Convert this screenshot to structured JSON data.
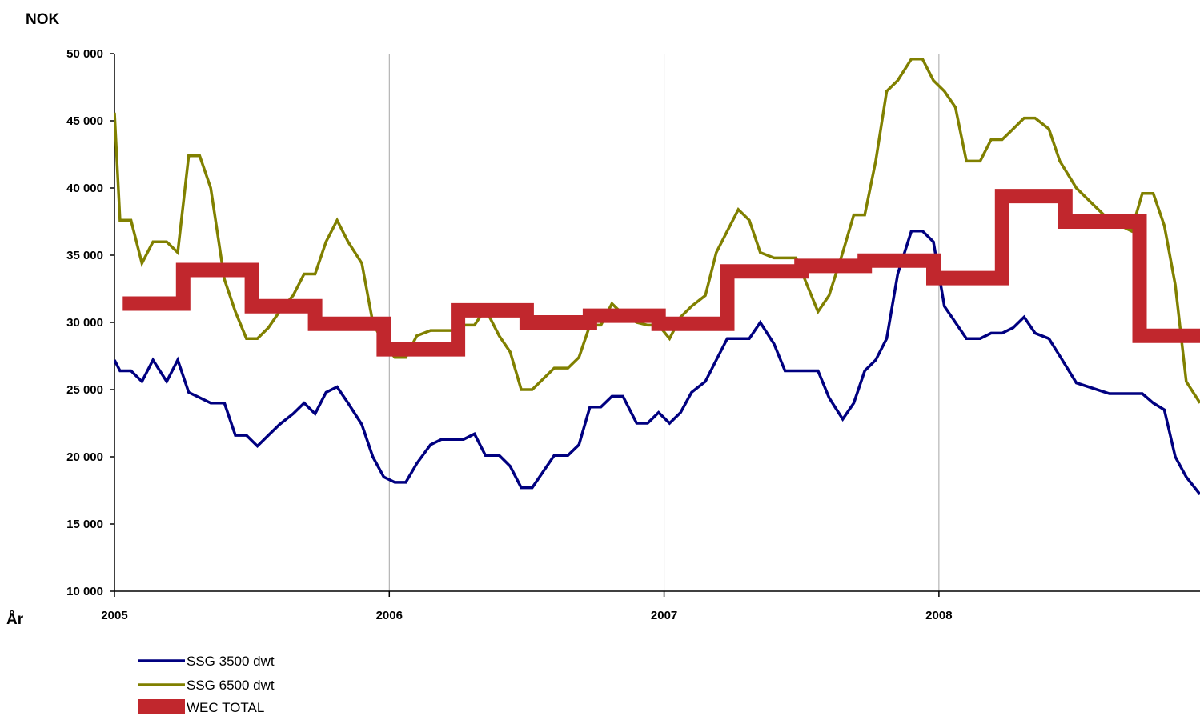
{
  "chart_data": {
    "type": "line",
    "ylabel": "NOK",
    "xlabel": "År",
    "xlim": [
      2005,
      2008.95
    ],
    "ylim": [
      10000,
      50000
    ],
    "y_ticks": [
      10000,
      15000,
      20000,
      25000,
      30000,
      35000,
      40000,
      45000,
      50000
    ],
    "y_tick_labels": [
      "10 000",
      "15 000",
      "20 000",
      "25 000",
      "30 000",
      "35 000",
      "40 000",
      "45 000",
      "50 000"
    ],
    "x_ticks": [
      2005,
      2006,
      2007,
      2008
    ],
    "x_tick_labels": [
      "2005",
      "2006",
      "2007",
      "2008"
    ],
    "grid": "vertical lines at year ticks",
    "legend_position": "bottom-left",
    "series": [
      {
        "name": "SSG 3500 dwt",
        "color": "#000080",
        "style": "line",
        "x": [
          2005.0,
          2005.02,
          2005.06,
          2005.1,
          2005.14,
          2005.19,
          2005.23,
          2005.27,
          2005.31,
          2005.35,
          2005.4,
          2005.44,
          2005.48,
          2005.52,
          2005.56,
          2005.6,
          2005.65,
          2005.69,
          2005.73,
          2005.77,
          2005.81,
          2005.85,
          2005.9,
          2005.94,
          2005.98,
          2006.02,
          2006.06,
          2006.1,
          2006.15,
          2006.19,
          2006.23,
          2006.27,
          2006.31,
          2006.35,
          2006.4,
          2006.44,
          2006.48,
          2006.52,
          2006.56,
          2006.6,
          2006.65,
          2006.69,
          2006.73,
          2006.77,
          2006.81,
          2006.85,
          2006.9,
          2006.94,
          2006.98,
          2007.02,
          2007.06,
          2007.1,
          2007.15,
          2007.19,
          2007.23,
          2007.27,
          2007.31,
          2007.35,
          2007.4,
          2007.44,
          2007.48,
          2007.52,
          2007.56,
          2007.6,
          2007.65,
          2007.69,
          2007.73,
          2007.77,
          2007.81,
          2007.85,
          2007.9,
          2007.94,
          2007.98,
          2008.02,
          2008.06,
          2008.1,
          2008.15,
          2008.19,
          2008.23,
          2008.27,
          2008.31,
          2008.35,
          2008.4,
          2008.44,
          2008.5,
          2008.56,
          2008.62,
          2008.7,
          2008.74,
          2008.78,
          2008.82,
          2008.86,
          2008.9,
          2008.95
        ],
        "y": [
          27200,
          26400,
          26400,
          25600,
          27200,
          25600,
          27200,
          24800,
          24400,
          24000,
          24000,
          21600,
          21600,
          20800,
          21600,
          22400,
          23200,
          24000,
          23200,
          24800,
          25200,
          24000,
          22400,
          20000,
          18500,
          18100,
          18100,
          19500,
          20900,
          21300,
          21300,
          21300,
          21700,
          20100,
          20100,
          19300,
          17700,
          17700,
          18900,
          20100,
          20100,
          20900,
          23700,
          23700,
          24500,
          24500,
          22500,
          22500,
          23300,
          22500,
          23300,
          24800,
          25600,
          27200,
          28800,
          28800,
          28800,
          30000,
          28400,
          26400,
          26400,
          26400,
          26400,
          24400,
          22800,
          24000,
          26400,
          27200,
          28800,
          33600,
          36800,
          36800,
          36000,
          31200,
          30000,
          28800,
          28800,
          29200,
          29200,
          29600,
          30400,
          29200,
          28800,
          27500,
          25500,
          25100,
          24700,
          24700,
          24700,
          24000,
          23500,
          20000,
          18500,
          17200
        ]
      },
      {
        "name": "SSG 6500 dwt",
        "color": "#808000",
        "style": "line",
        "x": [
          2005.0,
          2005.02,
          2005.06,
          2005.1,
          2005.14,
          2005.19,
          2005.23,
          2005.27,
          2005.31,
          2005.35,
          2005.4,
          2005.44,
          2005.48,
          2005.52,
          2005.56,
          2005.6,
          2005.65,
          2005.69,
          2005.73,
          2005.77,
          2005.81,
          2005.85,
          2005.9,
          2005.94,
          2005.98,
          2006.02,
          2006.06,
          2006.1,
          2006.15,
          2006.19,
          2006.23,
          2006.27,
          2006.31,
          2006.35,
          2006.4,
          2006.44,
          2006.48,
          2006.52,
          2006.56,
          2006.6,
          2006.65,
          2006.69,
          2006.73,
          2006.77,
          2006.81,
          2006.85,
          2006.9,
          2006.94,
          2006.98,
          2007.02,
          2007.06,
          2007.1,
          2007.15,
          2007.19,
          2007.23,
          2007.27,
          2007.31,
          2007.35,
          2007.4,
          2007.44,
          2007.48,
          2007.52,
          2007.56,
          2007.6,
          2007.65,
          2007.69,
          2007.73,
          2007.77,
          2007.81,
          2007.85,
          2007.9,
          2007.94,
          2007.98,
          2008.02,
          2008.06,
          2008.1,
          2008.15,
          2008.19,
          2008.23,
          2008.27,
          2008.31,
          2008.35,
          2008.4,
          2008.44,
          2008.5,
          2008.56,
          2008.62,
          2008.7,
          2008.74,
          2008.78,
          2008.82,
          2008.86,
          2008.9,
          2008.95
        ],
        "y": [
          45600,
          37600,
          37600,
          34400,
          36000,
          36000,
          35200,
          42400,
          42400,
          40000,
          33200,
          30800,
          28800,
          28800,
          29600,
          30800,
          32000,
          33600,
          33600,
          36000,
          37600,
          36000,
          34400,
          30000,
          28400,
          27400,
          27400,
          29000,
          29400,
          29400,
          29400,
          29800,
          29800,
          31000,
          29000,
          27800,
          25000,
          25000,
          25800,
          26600,
          26600,
          27400,
          29800,
          29800,
          31400,
          30600,
          30000,
          29800,
          29800,
          28800,
          30400,
          31200,
          32000,
          35200,
          36800,
          38400,
          37600,
          35200,
          34800,
          34800,
          34800,
          32800,
          30800,
          32000,
          35200,
          38000,
          38000,
          42000,
          47200,
          48000,
          49600,
          49600,
          48000,
          47200,
          46000,
          42000,
          42000,
          43600,
          43600,
          44400,
          45200,
          45200,
          44400,
          42000,
          40000,
          38800,
          37600,
          36800,
          39600,
          39600,
          37200,
          32800,
          25600,
          24000
        ]
      },
      {
        "name": "WEC TOTAL",
        "color": "#C1272D",
        "style": "step",
        "x": [
          2005.03,
          2005.25,
          2005.25,
          2005.5,
          2005.5,
          2005.73,
          2005.73,
          2005.98,
          2005.98,
          2006.25,
          2006.25,
          2006.5,
          2006.5,
          2006.73,
          2006.73,
          2006.98,
          2006.98,
          2007.23,
          2007.23,
          2007.5,
          2007.5,
          2007.73,
          2007.73,
          2007.98,
          2007.98,
          2008.23,
          2008.23,
          2008.46,
          2008.46,
          2008.73,
          2008.73,
          2008.95
        ],
        "y": [
          31400,
          31400,
          33900,
          33900,
          31200,
          31200,
          29900,
          29900,
          28000,
          28000,
          30900,
          30900,
          30000,
          30000,
          30500,
          30500,
          29900,
          29900,
          33800,
          33800,
          34200,
          34200,
          34600,
          34600,
          33300,
          33300,
          39400,
          39400,
          37500,
          37500,
          29000,
          29000
        ]
      }
    ]
  }
}
